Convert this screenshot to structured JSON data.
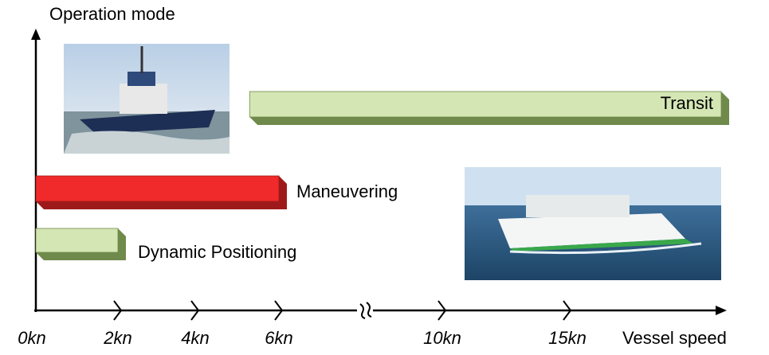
{
  "chart_data": {
    "type": "range-bar",
    "y_label": "Operation mode",
    "x_label": "Vessel speed",
    "bars": [
      {
        "name": "Dynamic Positioning",
        "start": 0,
        "end": 2,
        "color": "#d4e6b4"
      },
      {
        "name": "Maneuvering",
        "start": 0,
        "end": 6,
        "color": "#f02a2a"
      },
      {
        "name": "Transit",
        "start": 5.3,
        "end": 21,
        "color": "#d4e6b4"
      }
    ],
    "xlim": [
      0,
      21
    ],
    "xticks": [
      {
        "value": 0,
        "label": "0kn"
      },
      {
        "value": 2,
        "label": "2kn"
      },
      {
        "value": 4,
        "label": "4kn"
      },
      {
        "value": 6,
        "label": "6kn"
      },
      {
        "value": 10,
        "label": "10kn"
      },
      {
        "value": 15,
        "label": "15kn"
      }
    ],
    "axis_break": true
  }
}
